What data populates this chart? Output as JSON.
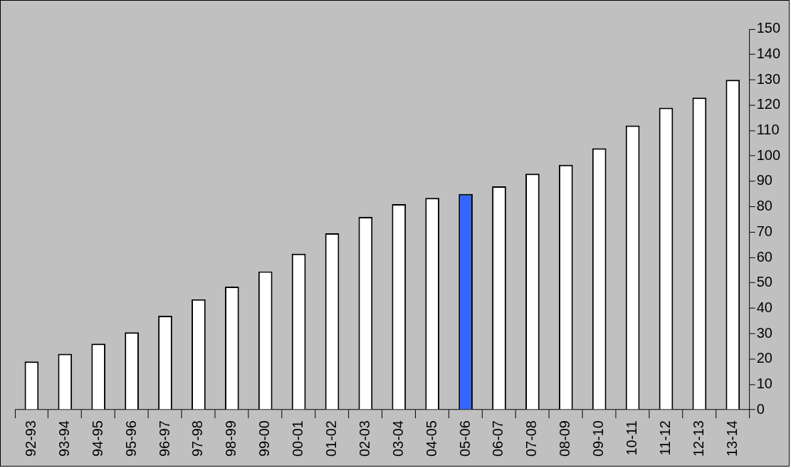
{
  "chart_data": {
    "type": "bar",
    "categories": [
      "92-93",
      "93-94",
      "94-95",
      "95-96",
      "96-97",
      "97-98",
      "98-99",
      "99-00",
      "00-01",
      "01-02",
      "02-03",
      "03-04",
      "04-05",
      "05-06",
      "06-07",
      "07-08",
      "08-09",
      "09-10",
      "10-11",
      "11-12",
      "12-13",
      "13-14"
    ],
    "values": [
      19,
      22,
      26,
      30.5,
      37,
      43.5,
      48.5,
      54.5,
      61.5,
      69.5,
      76,
      81,
      83.5,
      85,
      88,
      93,
      96.5,
      103,
      112,
      119,
      123,
      130
    ],
    "colors": [
      "#ffffff",
      "#ffffff",
      "#ffffff",
      "#ffffff",
      "#ffffff",
      "#ffffff",
      "#ffffff",
      "#ffffff",
      "#ffffff",
      "#ffffff",
      "#ffffff",
      "#ffffff",
      "#ffffff",
      "#3366ff",
      "#ffffff",
      "#ffffff",
      "#ffffff",
      "#ffffff",
      "#ffffff",
      "#ffffff",
      "#ffffff",
      "#ffffff"
    ],
    "ylim": [
      0,
      150
    ],
    "yticks": [
      0,
      10,
      20,
      30,
      40,
      50,
      60,
      70,
      80,
      90,
      100,
      110,
      120,
      130,
      140,
      150
    ],
    "grid": false,
    "legend": false
  }
}
